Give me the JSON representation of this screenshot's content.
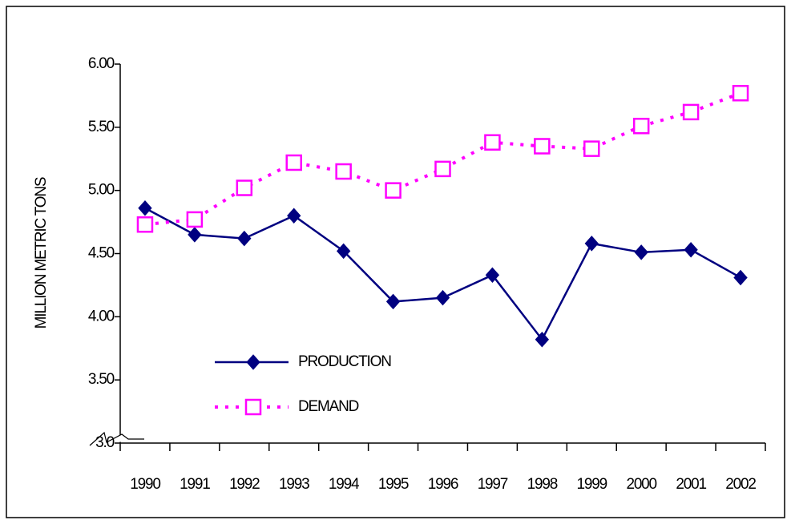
{
  "chart_data": {
    "type": "line",
    "y_label": "MILLION METRIC TONS",
    "categories": [
      "1990",
      "1991",
      "1992",
      "1993",
      "1994",
      "1995",
      "1996",
      "1997",
      "1998",
      "1999",
      "2000",
      "2001",
      "2002"
    ],
    "series": [
      {
        "name": "PRODUCTION",
        "color": "#000080",
        "marker": "diamond",
        "dash": "solid",
        "values": [
          4.86,
          4.65,
          4.62,
          4.8,
          4.52,
          4.12,
          4.15,
          4.33,
          3.82,
          4.58,
          4.51,
          4.53,
          4.31
        ]
      },
      {
        "name": "DEMAND",
        "color": "#ff00ff",
        "marker": "square",
        "dash": "dotted",
        "values": [
          4.73,
          4.77,
          5.02,
          5.22,
          5.15,
          5.0,
          5.17,
          5.38,
          5.35,
          5.33,
          5.51,
          5.62,
          5.77
        ]
      }
    ],
    "ylim": [
      3,
      6
    ],
    "yticks": [
      {
        "value": 3,
        "label": "3.0"
      },
      {
        "value": 3.5,
        "label": "3.50"
      },
      {
        "value": 4,
        "label": "4.00"
      },
      {
        "value": 4.5,
        "label": "4.50"
      },
      {
        "value": 5,
        "label": "5.00"
      },
      {
        "value": 5.5,
        "label": "5.50"
      },
      {
        "value": 6,
        "label": "6.00"
      }
    ],
    "grid": false
  }
}
